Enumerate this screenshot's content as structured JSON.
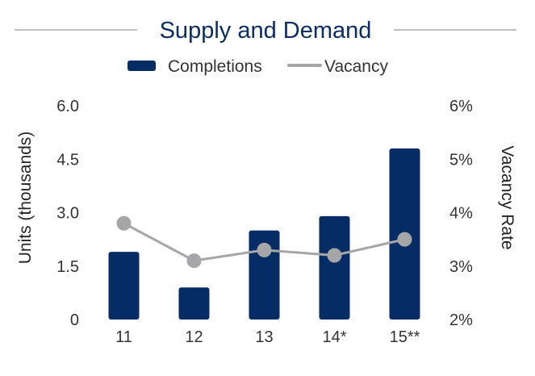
{
  "title": "Supply and Demand",
  "chart_data": {
    "type": "bar",
    "title": "Supply and Demand",
    "categories": [
      "11",
      "12",
      "13",
      "14*",
      "15**"
    ],
    "series": [
      {
        "name": "Completions",
        "type": "bar",
        "axis": "left",
        "values": [
          1.9,
          0.9,
          2.5,
          2.9,
          4.8
        ]
      },
      {
        "name": "Vacancy",
        "type": "line",
        "axis": "right",
        "values": [
          3.8,
          3.1,
          3.3,
          3.2,
          3.5
        ]
      }
    ],
    "ylabel": "Units (thousands)",
    "ylim": [
      0,
      6
    ],
    "yticks": [
      "0",
      "1.5",
      "3.0",
      "4.5",
      "6.0"
    ],
    "y2label": "Vacancy Rate",
    "y2lim": [
      2,
      6
    ],
    "y2ticks": [
      "2%",
      "3%",
      "4%",
      "5%",
      "6%"
    ],
    "legend_position": "top-center",
    "grid": false,
    "colors": {
      "bar": "#062c66",
      "line": "#a6a6a8",
      "title": "#0b2d63",
      "rule": "#bfbfbf"
    }
  }
}
